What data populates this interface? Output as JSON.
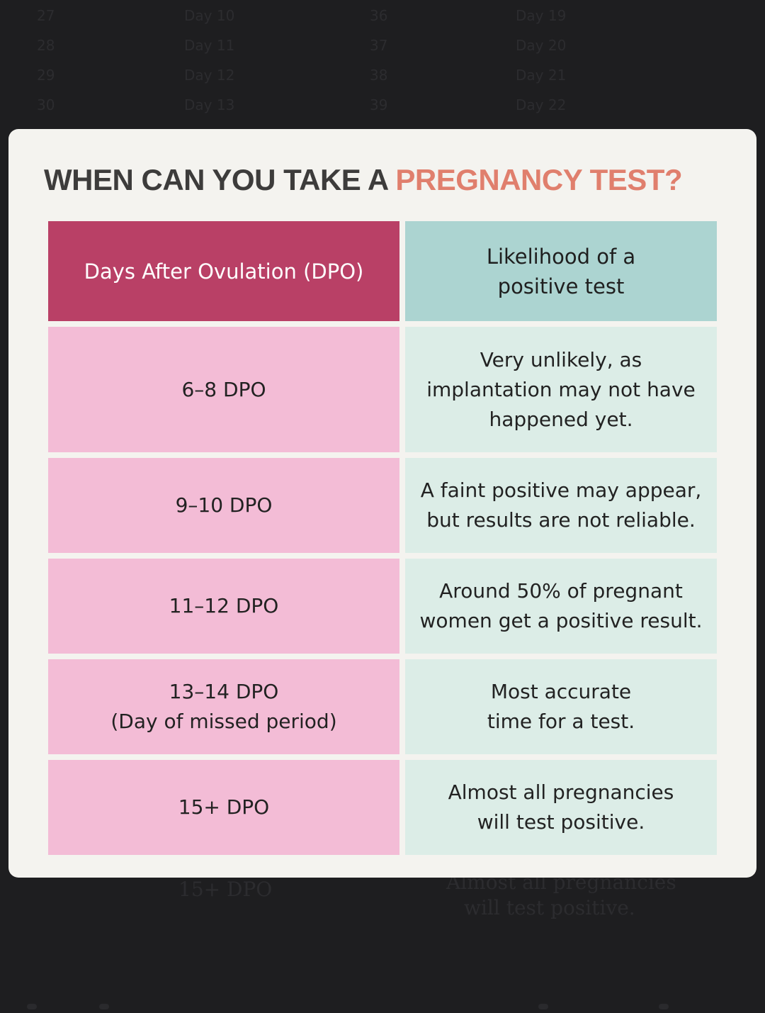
{
  "background_rows": [
    [
      "27",
      "Day 10",
      "36",
      "Day 19"
    ],
    [
      "28",
      "Day 11",
      "37",
      "Day 20"
    ],
    [
      "29",
      "Day 12",
      "38",
      "Day 21"
    ],
    [
      "30",
      "Day 13",
      "39",
      "Day 22"
    ]
  ],
  "background_bottom": {
    "left": "15+ DPO",
    "right_line1": "Almost all pregnancies",
    "right_line2": "will test positive."
  },
  "card": {
    "title_main": "WHEN CAN YOU TAKE A ",
    "title_accent": "PREGNANCY TEST?",
    "colors": {
      "title": "#3d3c3b",
      "accent": "#e07f6d",
      "header_left": "#b94066",
      "header_right": "#acd4d1",
      "body_left": "#f3bcd6",
      "body_right": "#dcede7"
    }
  },
  "table": {
    "headers": [
      "Days After Ovulation (DPO)",
      "Likelihood of a\npositive test"
    ],
    "rows": [
      {
        "dpo": "6–8 DPO",
        "likelihood": "Very unlikely, as\nimplantation may not have\nhappened yet."
      },
      {
        "dpo": "9–10 DPO",
        "likelihood": "A faint positive may appear,\nbut results are not reliable."
      },
      {
        "dpo": "11–12 DPO",
        "likelihood": "Around 50% of pregnant\nwomen get a positive result."
      },
      {
        "dpo": "13–14 DPO\n(Day of missed period)",
        "likelihood": "Most accurate\ntime for a test."
      },
      {
        "dpo": "15+ DPO",
        "likelihood": "Almost all pregnancies\nwill test positive."
      }
    ]
  }
}
